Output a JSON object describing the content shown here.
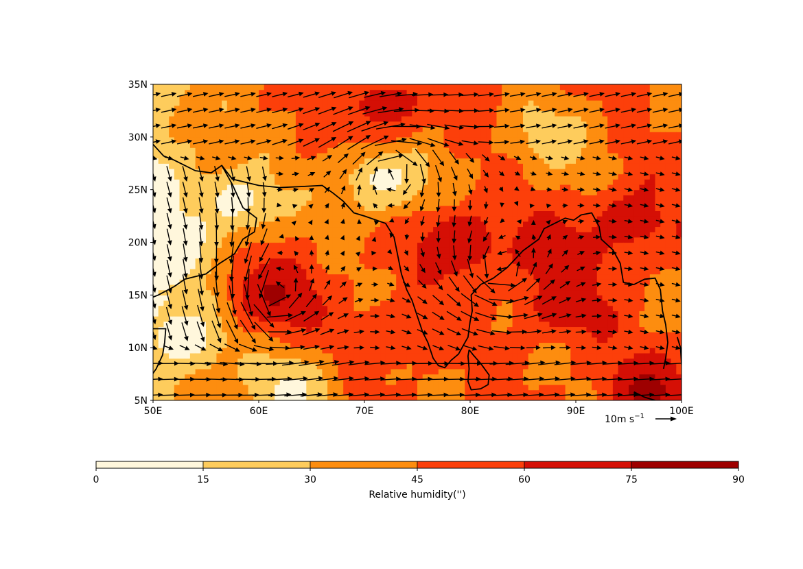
{
  "map": {
    "lon_range": [
      50,
      100
    ],
    "lat_range": [
      5,
      35
    ],
    "x_ticks": [
      {
        "value": 50,
        "label": "50E"
      },
      {
        "value": 60,
        "label": "60E"
      },
      {
        "value": 70,
        "label": "70E"
      },
      {
        "value": 80,
        "label": "80E"
      },
      {
        "value": 90,
        "label": "90E"
      },
      {
        "value": 100,
        "label": "100E"
      }
    ],
    "y_ticks": [
      {
        "value": 5,
        "label": "5N"
      },
      {
        "value": 10,
        "label": "10N"
      },
      {
        "value": 15,
        "label": "15N"
      },
      {
        "value": 20,
        "label": "20N"
      },
      {
        "value": 25,
        "label": "25N"
      },
      {
        "value": 30,
        "label": "30N"
      },
      {
        "value": 35,
        "label": "35N"
      }
    ],
    "quiver_key": {
      "label": "10m s",
      "superscript": "−1",
      "magnitude_ms": 10
    }
  },
  "colorbar": {
    "label": "Relative humidity('')",
    "levels": [
      0,
      15,
      30,
      45,
      60,
      75,
      90
    ],
    "tick_labels": [
      "0",
      "15",
      "30",
      "45",
      "60",
      "75",
      "90"
    ],
    "colors": [
      "#fff7dc",
      "#fecc5c",
      "#fd8d0f",
      "#fc3f0a",
      "#d50f05",
      "#9e0000"
    ]
  },
  "chart_data": {
    "type": "heatmap",
    "variable": "Relative humidity('')",
    "x_units": "degrees E",
    "y_units": "degrees N",
    "levels": [
      0,
      15,
      30,
      45,
      60,
      75,
      90
    ],
    "features": [
      {
        "kind": "dry",
        "lon": 51,
        "lat": 20,
        "value": 7
      },
      {
        "kind": "dry",
        "lon": 53,
        "lat": 11,
        "value": 7
      },
      {
        "kind": "dry",
        "lon": 58,
        "lat": 24,
        "value": 8
      },
      {
        "kind": "dry",
        "lon": 72,
        "lat": 26,
        "value": 8
      },
      {
        "kind": "dry",
        "lon": 63,
        "lat": 6,
        "value": 10
      },
      {
        "kind": "dry",
        "lon": 88,
        "lat": 30,
        "value": 22
      },
      {
        "kind": "moist",
        "lon": 61.5,
        "lat": 15,
        "value": 78
      },
      {
        "kind": "moist",
        "lon": 79,
        "lat": 20,
        "value": 76
      },
      {
        "kind": "moist",
        "lon": 88,
        "lat": 19,
        "value": 72
      },
      {
        "kind": "moist",
        "lon": 95,
        "lat": 22,
        "value": 70
      },
      {
        "kind": "moist",
        "lon": 72,
        "lat": 33,
        "value": 68
      },
      {
        "kind": "moist",
        "lon": 97,
        "lat": 6,
        "value": 80
      },
      {
        "kind": "moist",
        "lon": 89,
        "lat": 14,
        "value": 70
      },
      {
        "kind": "moist",
        "lon": 72,
        "lat": 11,
        "value": 58
      }
    ],
    "wind_field": {
      "units": "m s-1",
      "vortices": [
        {
          "lon": 61.5,
          "lat": 15,
          "rotation": "cyclonic"
        },
        {
          "lon": 83,
          "lat": 17,
          "rotation": "cyclonic"
        },
        {
          "lon": 73,
          "lat": 27,
          "rotation": "anticyclonic"
        }
      ],
      "background": "westerly south of 10N, north-westerly over Arabian Sea coast"
    }
  }
}
